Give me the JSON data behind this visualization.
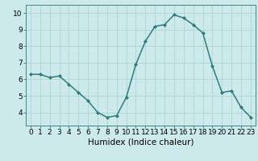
{
  "x": [
    0,
    1,
    2,
    3,
    4,
    5,
    6,
    7,
    8,
    9,
    10,
    11,
    12,
    13,
    14,
    15,
    16,
    17,
    18,
    19,
    20,
    21,
    22,
    23
  ],
  "y": [
    6.3,
    6.3,
    6.1,
    6.2,
    5.7,
    5.2,
    4.7,
    4.0,
    3.7,
    3.8,
    4.9,
    6.9,
    8.3,
    9.2,
    9.3,
    9.9,
    9.7,
    9.3,
    8.8,
    6.8,
    5.2,
    5.3,
    4.3,
    3.7
  ],
  "line_color": "#2d7d7d",
  "marker": "D",
  "marker_size": 2.0,
  "bg_color": "#cceaea",
  "grid_color": "#aed4d4",
  "xlabel": "Humidex (Indice chaleur)",
  "ylim": [
    3.2,
    10.5
  ],
  "xlim": [
    -0.5,
    23.5
  ],
  "yticks": [
    4,
    5,
    6,
    7,
    8,
    9,
    10
  ],
  "xticks": [
    0,
    1,
    2,
    3,
    4,
    5,
    6,
    7,
    8,
    9,
    10,
    11,
    12,
    13,
    14,
    15,
    16,
    17,
    18,
    19,
    20,
    21,
    22,
    23
  ],
  "tick_label_fontsize": 6.5,
  "xlabel_fontsize": 7.5,
  "line_width": 1.1,
  "spine_color": "#3a8a8a"
}
